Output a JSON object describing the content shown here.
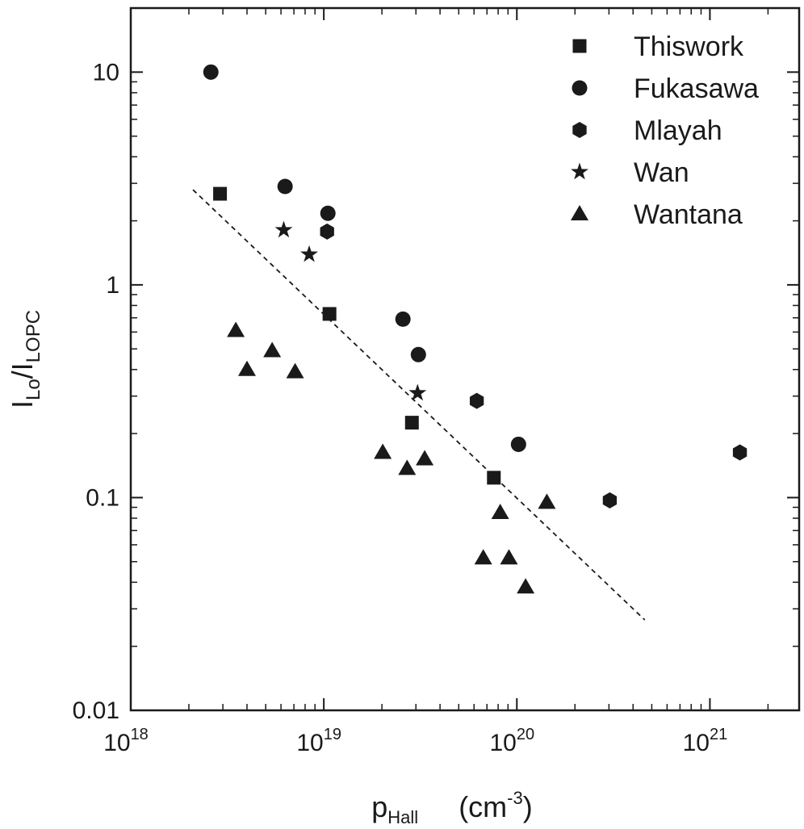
{
  "chart_data": {
    "type": "scatter",
    "xlabel_parts": [
      {
        "text": "p"
      },
      {
        "text": "Hall",
        "sub": true
      },
      {
        "text": "(cm"
      },
      {
        "text": "-3",
        "sup": true
      },
      {
        "text": ")"
      }
    ],
    "ylabel_parts": [
      {
        "text": "I"
      },
      {
        "text": "Lo",
        "sub": true
      },
      {
        "text": "/I"
      },
      {
        "text": "LOPC",
        "sub": true
      }
    ],
    "xscale": "log",
    "yscale": "log",
    "xlim": [
      1e+18,
      2.9e+21
    ],
    "ylim": [
      0.01,
      20
    ],
    "xticks": [
      {
        "value": 1e+18,
        "label": "10",
        "sup": "18"
      },
      {
        "value": 1e+19,
        "label": "10",
        "sup": "19"
      },
      {
        "value": 1e+20,
        "label": "10",
        "sup": "20"
      },
      {
        "value": 1e+21,
        "label": "10",
        "sup": "21"
      }
    ],
    "yticks": [
      0.01,
      0.1,
      1,
      10
    ],
    "minor_ticks": true,
    "grid": false,
    "legend": "upper right",
    "series": [
      {
        "name": "Thiswork",
        "marker": "square",
        "color": "#1a1a1a",
        "x": [
          2.9e+18,
          1.07e+19,
          2.86e+19,
          7.6e+19
        ],
        "values": [
          2.68,
          0.73,
          0.225,
          0.124
        ]
      },
      {
        "name": "Fukasawa",
        "marker": "circle",
        "color": "#1a1a1a",
        "x": [
          2.6e+18,
          6.3e+18,
          1.05e+19,
          2.57e+19,
          3.09e+19,
          1.02e+20
        ],
        "values": [
          10,
          2.9,
          2.17,
          0.69,
          0.47,
          0.178
        ]
      },
      {
        "name": "Mlayah",
        "marker": "hexagon",
        "color": "#1a1a1a",
        "x": [
          1.04e+19,
          6.2e+19,
          3.03e+20,
          1.43e+21
        ],
        "values": [
          1.78,
          0.285,
          0.097,
          0.163
        ]
      },
      {
        "name": "Wan",
        "marker": "star",
        "color": "#1a1a1a",
        "x": [
          6.2e+18,
          8.4e+18,
          3.06e+19
        ],
        "values": [
          1.81,
          1.39,
          0.31
        ]
      },
      {
        "name": "Wantana",
        "marker": "triangle",
        "color": "#1a1a1a",
        "x": [
          3.5e+18,
          5.4e+18,
          4e+18,
          7.1e+18,
          2.02e+19,
          2.7e+19,
          3.33e+19,
          8.2e+19,
          6.7e+19,
          9.1e+19,
          1.11e+20,
          1.43e+20
        ],
        "values": [
          0.61,
          0.49,
          0.4,
          0.39,
          0.163,
          0.137,
          0.152,
          0.085,
          0.052,
          0.052,
          0.038,
          0.095
        ]
      }
    ],
    "fit_line": {
      "x": [
        2.1e+18,
        4.6e+20
      ],
      "y": [
        2.8,
        0.0266
      ],
      "color": "#1a1a1a"
    }
  }
}
